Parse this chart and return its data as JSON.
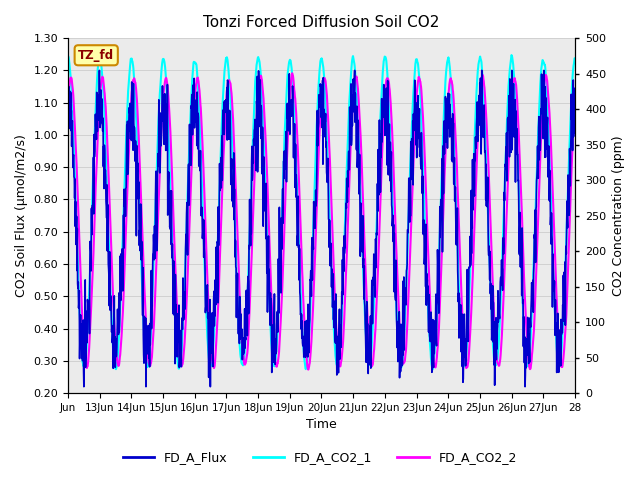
{
  "title": "Tonzi Forced Diffusion Soil CO2",
  "xlabel": "Time",
  "ylabel_left": "CO2 Soil Flux (μmol/m2/s)",
  "ylabel_right": "CO2 Concentration (ppm)",
  "ylim_left": [
    0.2,
    1.3
  ],
  "ylim_right": [
    0,
    500
  ],
  "yticks_left": [
    0.2,
    0.3,
    0.4,
    0.5,
    0.6,
    0.7,
    0.8,
    0.9,
    1.0,
    1.1,
    1.2,
    1.3
  ],
  "yticks_right": [
    0,
    50,
    100,
    150,
    200,
    250,
    300,
    350,
    400,
    450,
    500
  ],
  "xtick_labels": [
    "Jun",
    "13Jun",
    "14Jun",
    "15Jun",
    "16Jun",
    "17Jun",
    "18Jun",
    "19Jun",
    "20Jun",
    "21Jun",
    "22Jun",
    "23Jun",
    "24Jun",
    "25Jun",
    "26Jun",
    "27Jun",
    "28"
  ],
  "n_days": 16,
  "flux_color": "#0000CC",
  "co2_1_color": "#00FFFF",
  "co2_2_color": "#FF00FF",
  "flux_label": "FD_A_Flux",
  "co2_1_label": "FD_A_CO2_1",
  "co2_2_label": "FD_A_CO2_2",
  "site_label": "TZ_fd",
  "bg_color": "#EBEBEB",
  "flux_lw": 1.2,
  "co2_lw": 1.5,
  "points_per_day": 96
}
